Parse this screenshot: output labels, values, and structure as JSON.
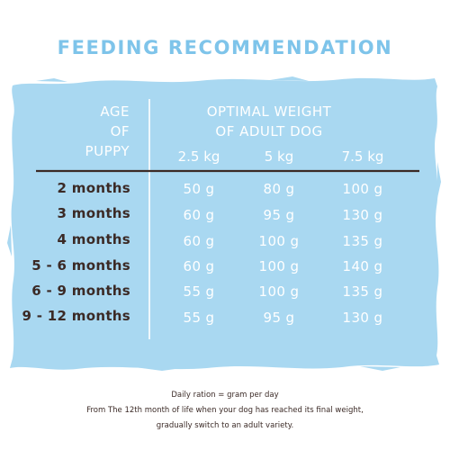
{
  "title": "FEEDING RECOMMENDATION",
  "colors": {
    "accent": "#7ec4ea",
    "panel": "#a9d8f1",
    "text_dark": "#3b2a26",
    "text_light": "#ffffff",
    "rule": "#3b2a26"
  },
  "table": {
    "age_header": [
      "AGE",
      "OF",
      "PUPPY"
    ],
    "weight_header": [
      "OPTIMAL WEIGHT",
      "OF ADULT DOG"
    ],
    "weights": [
      "2.5 kg",
      "5 kg",
      "7.5 kg"
    ],
    "rows": [
      {
        "age": "2 months",
        "values": [
          "50 g",
          "80 g",
          "100 g"
        ]
      },
      {
        "age": "3 months",
        "values": [
          "60 g",
          "95 g",
          "130 g"
        ]
      },
      {
        "age": "4 months",
        "values": [
          "60 g",
          "100 g",
          "135 g"
        ]
      },
      {
        "age": "5 - 6 months",
        "values": [
          "60 g",
          "100 g",
          "140 g"
        ]
      },
      {
        "age": "6 - 9 months",
        "values": [
          "55 g",
          "100 g",
          "135 g"
        ]
      },
      {
        "age": "9 - 12 months",
        "values": [
          "55 g",
          "95 g",
          "130 g"
        ]
      }
    ]
  },
  "footer": [
    "Daily ration = gram per day",
    "From The 12th month of life when your dog has reached its final weight,",
    "gradually switch to an adult variety."
  ]
}
